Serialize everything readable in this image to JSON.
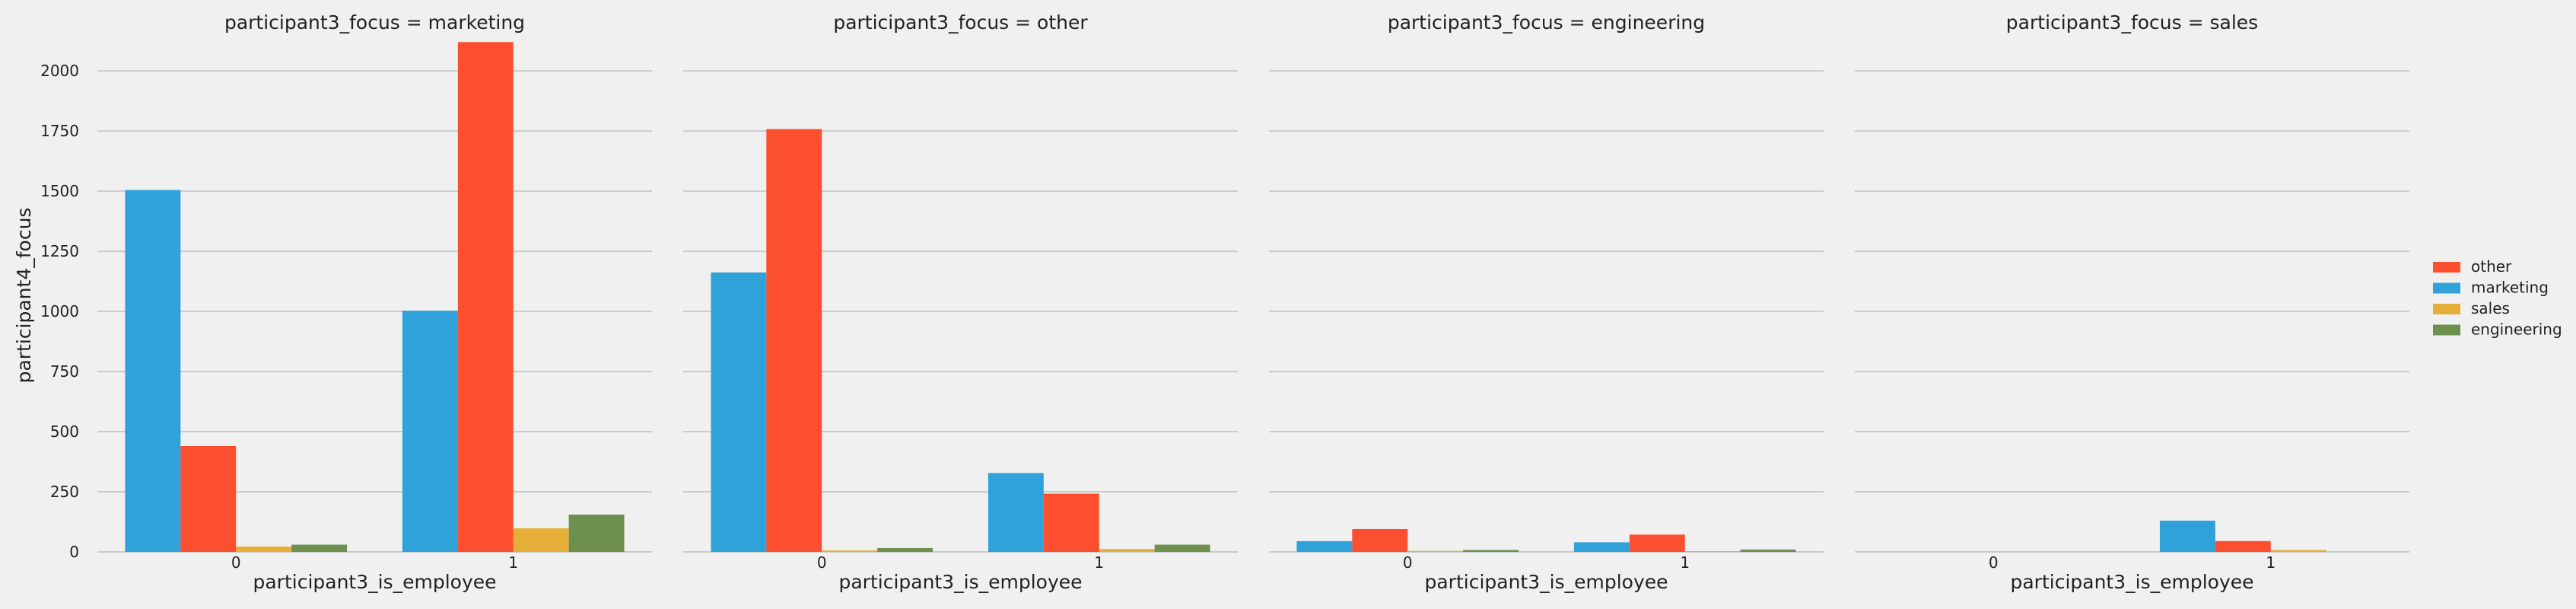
{
  "chart_data": {
    "type": "bar",
    "ylabel": "participant4_focus",
    "xlabel": "participant3_is_employee",
    "ylim": [
      0,
      2200
    ],
    "yticks": [
      0,
      250,
      500,
      750,
      1000,
      1250,
      1500,
      1750,
      2000
    ],
    "grid": true,
    "legend_placement": "right",
    "categories": [
      "0",
      "1"
    ],
    "series_colors": {
      "marketing": "#30a2da",
      "other": "#fc4f30",
      "sales": "#e5ae38",
      "engineering": "#6d904f"
    },
    "hue_order": [
      "marketing",
      "other",
      "sales",
      "engineering"
    ],
    "legend": [
      "other",
      "marketing",
      "sales",
      "engineering"
    ],
    "facets": [
      {
        "title": "participant3_focus = marketing",
        "values": {
          "marketing": [
            1505,
            1003
          ],
          "other": [
            440,
            2120
          ],
          "sales": [
            22,
            98
          ],
          "engineering": [
            30,
            155
          ]
        }
      },
      {
        "title": "participant3_focus = other",
        "values": {
          "marketing": [
            1162,
            328
          ],
          "other": [
            1758,
            242
          ],
          "sales": [
            6,
            12
          ],
          "engineering": [
            16,
            30
          ]
        }
      },
      {
        "title": "participant3_focus = engineering",
        "values": {
          "marketing": [
            45,
            40
          ],
          "other": [
            95,
            72
          ],
          "sales": [
            4,
            3
          ],
          "engineering": [
            8,
            10
          ]
        }
      },
      {
        "title": "participant3_focus = sales",
        "values": {
          "marketing": [
            0,
            130
          ],
          "other": [
            0,
            45
          ],
          "sales": [
            0,
            8
          ],
          "engineering": [
            0,
            0
          ]
        }
      }
    ]
  }
}
